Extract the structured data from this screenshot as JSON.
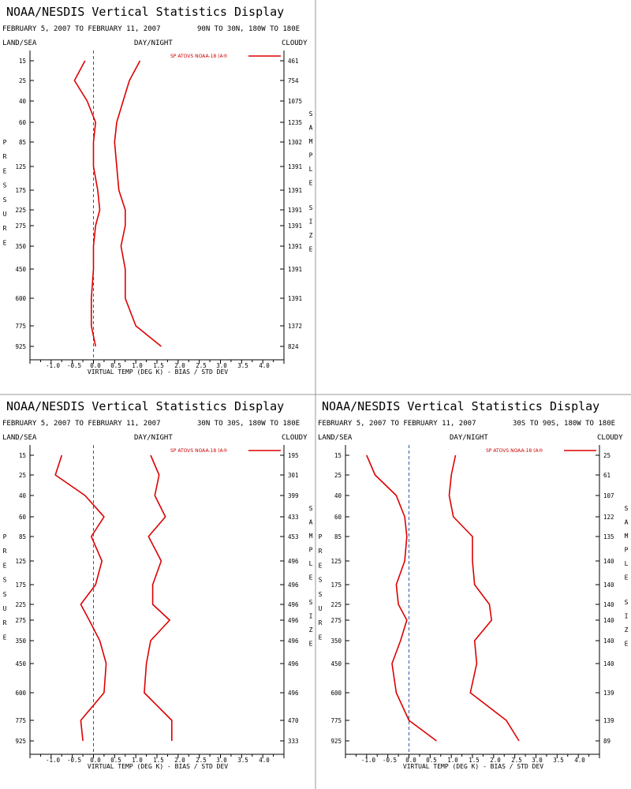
{
  "colors": {
    "series": "#dd0000",
    "zero_line": "#3355aa",
    "axis": "#000000",
    "divider": "#999999"
  },
  "pressure_levels": [
    "15",
    "25",
    "40",
    "60",
    "85",
    "125",
    "175",
    "225",
    "275",
    "350",
    "450",
    "600",
    "775",
    "925"
  ],
  "chart_data": [
    {
      "type": "line",
      "title": "NOAA/NESDIS Vertical Statistics Display",
      "date_range": "FEBRUARY 5, 2007 TO FEBRUARY 11, 2007",
      "region": "90N TO 30N, 180W TO 180E",
      "header_left": "LAND/SEA",
      "header_center": "DAY/NIGHT",
      "header_right": "CLOUDY",
      "xlabel": "VIRTUAL TEMP (DEG K) - BIAS / STD DEV",
      "ylabel": "PRESSURE",
      "y2label": "SAMPLE SIZE",
      "legend": "SP ATOVS NOAA-18 (A®",
      "xlim": [
        -1.5,
        4.5
      ],
      "xticks": [
        "-1.0",
        "-0.5",
        "0.0",
        "0.5",
        "1.0",
        "1.5",
        "2.0",
        "2.5",
        "3.0",
        "3.5",
        "4.0"
      ],
      "pressure": [
        15,
        25,
        40,
        60,
        85,
        125,
        175,
        225,
        275,
        350,
        450,
        600,
        775,
        925
      ],
      "sample_size": [
        "461",
        "754",
        "1075",
        "1235",
        "1302",
        "1391",
        "1391",
        "1391",
        "1391",
        "1391",
        "1391",
        "1391",
        "1372",
        "824"
      ],
      "series": [
        {
          "values": [
            -0.2,
            -0.45,
            -0.15,
            0.05,
            0.0,
            0.0,
            0.1,
            0.15,
            0.05,
            0.0,
            0.0,
            -0.05,
            -0.05,
            0.05
          ]
        },
        {
          "values": [
            1.1,
            0.85,
            0.7,
            0.55,
            0.5,
            0.55,
            0.6,
            0.75,
            0.75,
            0.65,
            0.75,
            0.75,
            1.0,
            1.6
          ]
        }
      ]
    },
    {
      "type": "line",
      "title": "NOAA/NESDIS Vertical Statistics Display",
      "date_range": "FEBRUARY 5, 2007 TO FEBRUARY 11, 2007",
      "region": "30N TO 30S, 180W TO 180E",
      "header_left": "LAND/SEA",
      "header_center": "DAY/NIGHT",
      "header_right": "CLOUDY",
      "xlabel": "VIRTUAL TEMP (DEG K) - BIAS / STD DEV",
      "ylabel": "PRESSURE",
      "y2label": "SAMPLE SIZE",
      "legend": "SP ATOVS NOAA-18 (A®",
      "xlim": [
        -1.5,
        4.5
      ],
      "xticks": [
        "-1.0",
        "-0.5",
        "0.0",
        "0.5",
        "1.0",
        "1.5",
        "2.0",
        "2.5",
        "3.0",
        "3.5",
        "4.0"
      ],
      "pressure": [
        15,
        25,
        40,
        60,
        85,
        125,
        175,
        225,
        275,
        350,
        450,
        600,
        775,
        925
      ],
      "sample_size": [
        "195",
        "301",
        "399",
        "433",
        "453",
        "496",
        "496",
        "496",
        "496",
        "496",
        "496",
        "496",
        "470",
        "333"
      ],
      "series": [
        {
          "values": [
            -0.75,
            -0.9,
            -0.2,
            0.25,
            -0.05,
            0.2,
            0.05,
            -0.3,
            -0.1,
            0.15,
            0.3,
            0.25,
            -0.3,
            -0.25
          ]
        },
        {
          "values": [
            1.35,
            1.55,
            1.45,
            1.7,
            1.3,
            1.6,
            1.4,
            1.4,
            1.8,
            1.35,
            1.25,
            1.2,
            1.85,
            1.85
          ]
        }
      ]
    },
    {
      "type": "line",
      "title": "NOAA/NESDIS Vertical Statistics Display",
      "date_range": "FEBRUARY 5, 2007 TO FEBRUARY 11, 2007",
      "region": "30S TO 90S, 180W TO 180E",
      "header_left": "LAND/SEA",
      "header_center": "DAY/NIGHT",
      "header_right": "CLOUDY",
      "xlabel": "VIRTUAL TEMP (DEG K) - BIAS / STD DEV",
      "ylabel": "PRESSURE",
      "y2label": "SAMPLE SIZE",
      "legend": "SP ATOVS NOAA-18 (A®",
      "xlim": [
        -1.5,
        4.5
      ],
      "xticks": [
        "-1.0",
        "-0.5",
        "0.0",
        "0.5",
        "1.0",
        "1.5",
        "2.0",
        "2.5",
        "3.0",
        "3.5",
        "4.0"
      ],
      "pressure": [
        15,
        25,
        40,
        60,
        85,
        125,
        175,
        225,
        275,
        350,
        450,
        600,
        775,
        925
      ],
      "sample_size": [
        "25",
        "61",
        "107",
        "122",
        "135",
        "140",
        "140",
        "140",
        "140",
        "140",
        "140",
        "139",
        "139",
        "89"
      ],
      "series": [
        {
          "values": [
            -1.0,
            -0.8,
            -0.3,
            -0.1,
            -0.05,
            -0.1,
            -0.3,
            -0.25,
            -0.05,
            -0.2,
            -0.4,
            -0.3,
            0.0,
            0.65
          ]
        },
        {
          "values": [
            1.1,
            1.0,
            0.95,
            1.05,
            1.5,
            1.5,
            1.55,
            1.9,
            1.95,
            1.55,
            1.6,
            1.45,
            2.3,
            2.6
          ]
        }
      ]
    }
  ]
}
